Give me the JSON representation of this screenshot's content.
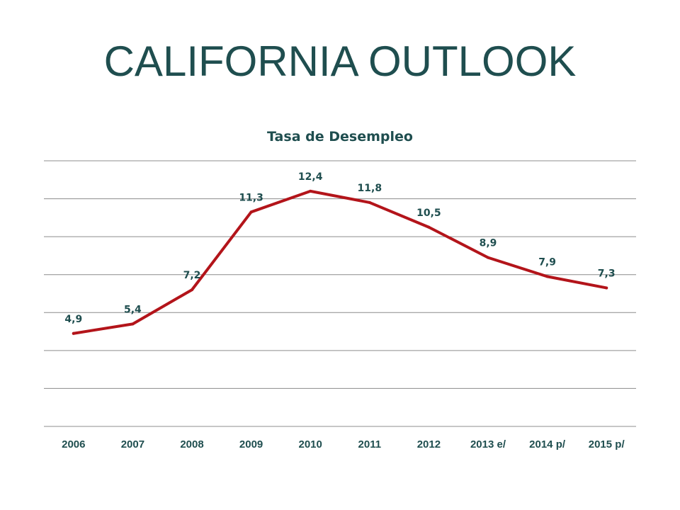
{
  "slide": {
    "title": "CALIFORNIA OUTLOOK"
  },
  "colors": {
    "title": "#1f4e4f",
    "line": "#b3141a",
    "grid": "#8c8c8c",
    "labels": "#1f4e4f"
  },
  "chart_data": {
    "type": "line",
    "title": "Tasa de Desempleo",
    "categories": [
      "2006",
      "2007",
      "2008",
      "2009",
      "2010",
      "2011",
      "2012",
      "2013 e/",
      "2014 p/",
      "2015 p/"
    ],
    "series": [
      {
        "values": [
          4.9,
          5.4,
          7.2,
          11.3,
          12.4,
          11.8,
          10.5,
          8.9,
          7.9,
          7.3
        ],
        "data_labels": [
          "4,9",
          "5,4",
          "7,2",
          "11,3",
          "12,4",
          "11,8",
          "10,5",
          "8,9",
          "7,9",
          "7,3"
        ]
      }
    ],
    "xlabel": "",
    "ylabel": "",
    "ylim": [
      0,
      14
    ],
    "grid": true,
    "legend": "none"
  }
}
